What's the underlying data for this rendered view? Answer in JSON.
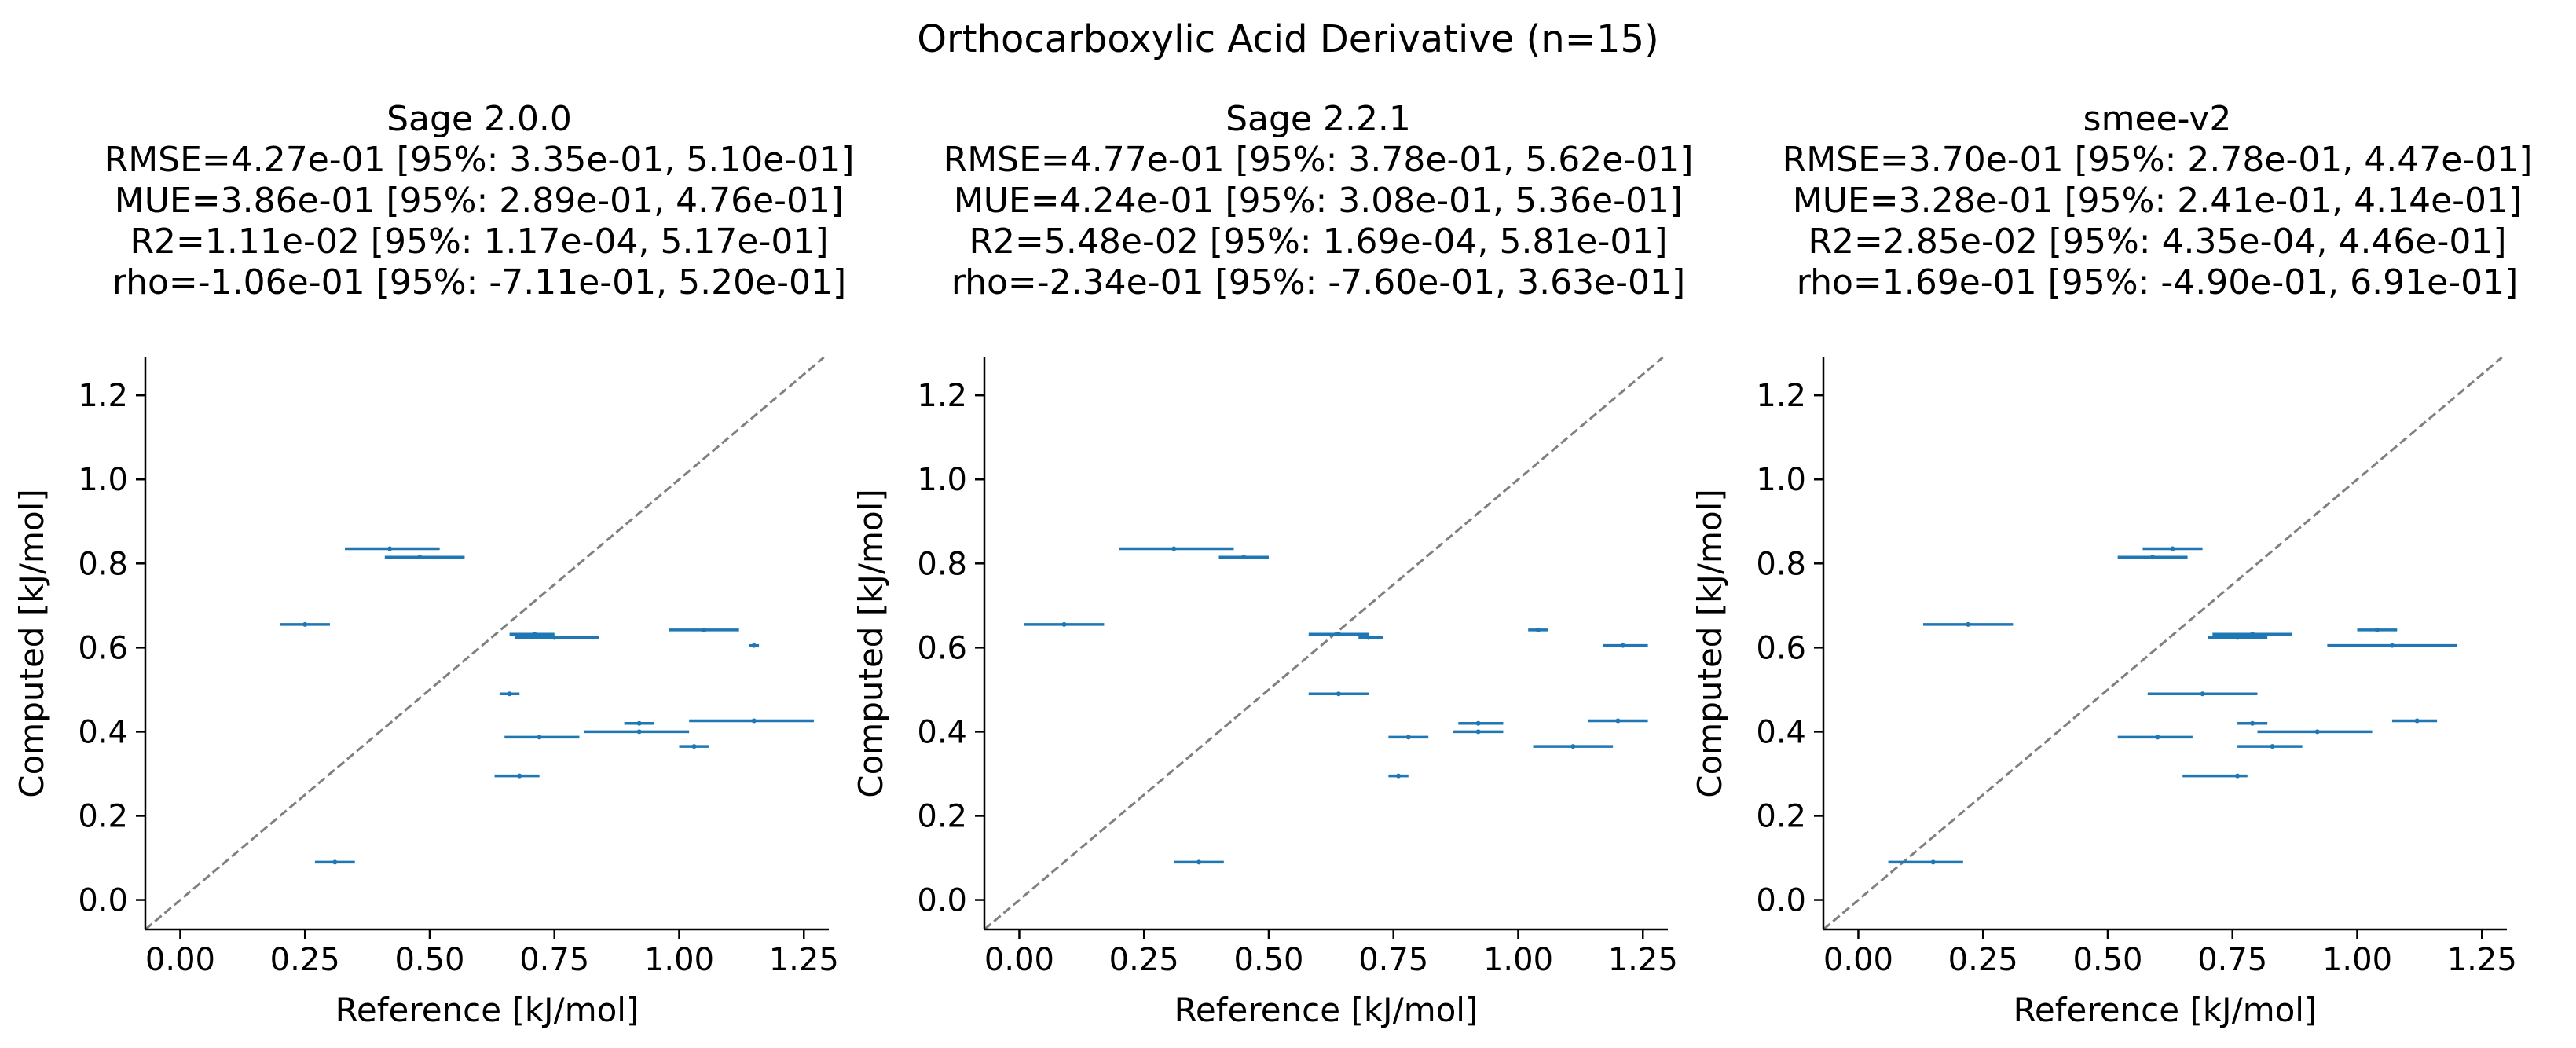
{
  "suptitle": "Orthocarboxylic Acid Derivative (n=15)",
  "colors": {
    "series": "#1f77b4",
    "identity_line": "#808080",
    "axis": "#000000"
  },
  "chart_data": [
    {
      "type": "scatter",
      "title_lines": [
        "Sage 2.0.0",
        "RMSE=4.27e-01 [95%: 3.35e-01, 5.10e-01]",
        "MUE=3.86e-01 [95%: 2.89e-01, 4.76e-01]",
        "R2=1.11e-02 [95%: 1.17e-04, 5.17e-01]",
        "rho=-1.06e-01 [95%: -7.11e-01, 5.20e-01]"
      ],
      "xlabel": "Reference [kJ/mol]",
      "ylabel": "Computed [kJ/mol]",
      "xlim": [
        -0.07,
        1.3
      ],
      "ylim": [
        -0.07,
        1.29
      ],
      "xticks": [
        "0.00",
        "0.25",
        "0.50",
        "0.75",
        "1.00",
        "1.25"
      ],
      "yticks": [
        "0.0",
        "0.2",
        "0.4",
        "0.6",
        "0.8",
        "1.0",
        "1.2"
      ],
      "identity_line": true,
      "points": [
        {
          "x": 0.42,
          "y": 0.835,
          "xerr_low": 0.33,
          "xerr_high": 0.52
        },
        {
          "x": 0.48,
          "y": 0.815,
          "xerr_low": 0.41,
          "xerr_high": 0.57
        },
        {
          "x": 0.25,
          "y": 0.655,
          "xerr_low": 0.2,
          "xerr_high": 0.3
        },
        {
          "x": 0.71,
          "y": 0.632,
          "xerr_low": 0.66,
          "xerr_high": 0.75
        },
        {
          "x": 0.75,
          "y": 0.624,
          "xerr_low": 0.67,
          "xerr_high": 0.84
        },
        {
          "x": 1.05,
          "y": 0.642,
          "xerr_low": 0.98,
          "xerr_high": 1.12
        },
        {
          "x": 1.15,
          "y": 0.605,
          "xerr_low": 1.14,
          "xerr_high": 1.16
        },
        {
          "x": 0.66,
          "y": 0.49,
          "xerr_low": 0.64,
          "xerr_high": 0.68
        },
        {
          "x": 0.92,
          "y": 0.42,
          "xerr_low": 0.89,
          "xerr_high": 0.95
        },
        {
          "x": 1.15,
          "y": 0.426,
          "xerr_low": 1.02,
          "xerr_high": 1.27
        },
        {
          "x": 0.72,
          "y": 0.387,
          "xerr_low": 0.65,
          "xerr_high": 0.8
        },
        {
          "x": 0.92,
          "y": 0.4,
          "xerr_low": 0.81,
          "xerr_high": 1.02
        },
        {
          "x": 1.03,
          "y": 0.365,
          "xerr_low": 1.0,
          "xerr_high": 1.06
        },
        {
          "x": 0.68,
          "y": 0.295,
          "xerr_low": 0.63,
          "xerr_high": 0.72
        },
        {
          "x": 0.31,
          "y": 0.09,
          "xerr_low": 0.27,
          "xerr_high": 0.35
        }
      ]
    },
    {
      "type": "scatter",
      "title_lines": [
        "Sage 2.2.1",
        "RMSE=4.77e-01 [95%: 3.78e-01, 5.62e-01]",
        "MUE=4.24e-01 [95%: 3.08e-01, 5.36e-01]",
        "R2=5.48e-02 [95%: 1.69e-04, 5.81e-01]",
        "rho=-2.34e-01 [95%: -7.60e-01, 3.63e-01]"
      ],
      "xlabel": "Reference [kJ/mol]",
      "ylabel": "Computed [kJ/mol]",
      "xlim": [
        -0.07,
        1.3
      ],
      "ylim": [
        -0.07,
        1.29
      ],
      "xticks": [
        "0.00",
        "0.25",
        "0.50",
        "0.75",
        "1.00",
        "1.25"
      ],
      "yticks": [
        "0.0",
        "0.2",
        "0.4",
        "0.6",
        "0.8",
        "1.0",
        "1.2"
      ],
      "identity_line": true,
      "points": [
        {
          "x": 0.31,
          "y": 0.835,
          "xerr_low": 0.2,
          "xerr_high": 0.43
        },
        {
          "x": 0.45,
          "y": 0.815,
          "xerr_low": 0.4,
          "xerr_high": 0.5
        },
        {
          "x": 0.09,
          "y": 0.655,
          "xerr_low": 0.01,
          "xerr_high": 0.17
        },
        {
          "x": 0.64,
          "y": 0.632,
          "xerr_low": 0.58,
          "xerr_high": 0.7
        },
        {
          "x": 0.7,
          "y": 0.624,
          "xerr_low": 0.68,
          "xerr_high": 0.73
        },
        {
          "x": 1.04,
          "y": 0.642,
          "xerr_low": 1.02,
          "xerr_high": 1.06
        },
        {
          "x": 1.21,
          "y": 0.605,
          "xerr_low": 1.17,
          "xerr_high": 1.26
        },
        {
          "x": 0.64,
          "y": 0.49,
          "xerr_low": 0.58,
          "xerr_high": 0.7
        },
        {
          "x": 0.92,
          "y": 0.42,
          "xerr_low": 0.88,
          "xerr_high": 0.97
        },
        {
          "x": 1.2,
          "y": 0.426,
          "xerr_low": 1.14,
          "xerr_high": 1.26
        },
        {
          "x": 0.78,
          "y": 0.387,
          "xerr_low": 0.74,
          "xerr_high": 0.82
        },
        {
          "x": 0.92,
          "y": 0.4,
          "xerr_low": 0.87,
          "xerr_high": 0.97
        },
        {
          "x": 1.11,
          "y": 0.365,
          "xerr_low": 1.03,
          "xerr_high": 1.19
        },
        {
          "x": 0.76,
          "y": 0.295,
          "xerr_low": 0.74,
          "xerr_high": 0.78
        },
        {
          "x": 0.36,
          "y": 0.09,
          "xerr_low": 0.31,
          "xerr_high": 0.41
        }
      ]
    },
    {
      "type": "scatter",
      "title_lines": [
        "smee-v2",
        "RMSE=3.70e-01 [95%: 2.78e-01, 4.47e-01]",
        "MUE=3.28e-01 [95%: 2.41e-01, 4.14e-01]",
        "R2=2.85e-02 [95%: 4.35e-04, 4.46e-01]",
        "rho=1.69e-01 [95%: -4.90e-01, 6.91e-01]"
      ],
      "xlabel": "Reference [kJ/mol]",
      "ylabel": "Computed [kJ/mol]",
      "xlim": [
        -0.07,
        1.3
      ],
      "ylim": [
        -0.07,
        1.29
      ],
      "xticks": [
        "0.00",
        "0.25",
        "0.50",
        "0.75",
        "1.00",
        "1.25"
      ],
      "yticks": [
        "0.0",
        "0.2",
        "0.4",
        "0.6",
        "0.8",
        "1.0",
        "1.2"
      ],
      "identity_line": true,
      "points": [
        {
          "x": 0.63,
          "y": 0.835,
          "xerr_low": 0.57,
          "xerr_high": 0.69
        },
        {
          "x": 0.59,
          "y": 0.815,
          "xerr_low": 0.52,
          "xerr_high": 0.66
        },
        {
          "x": 0.22,
          "y": 0.655,
          "xerr_low": 0.13,
          "xerr_high": 0.31
        },
        {
          "x": 0.79,
          "y": 0.632,
          "xerr_low": 0.71,
          "xerr_high": 0.87
        },
        {
          "x": 0.76,
          "y": 0.624,
          "xerr_low": 0.7,
          "xerr_high": 0.82
        },
        {
          "x": 1.04,
          "y": 0.642,
          "xerr_low": 1.0,
          "xerr_high": 1.08
        },
        {
          "x": 1.07,
          "y": 0.605,
          "xerr_low": 0.94,
          "xerr_high": 1.2
        },
        {
          "x": 0.69,
          "y": 0.49,
          "xerr_low": 0.58,
          "xerr_high": 0.8
        },
        {
          "x": 0.79,
          "y": 0.42,
          "xerr_low": 0.76,
          "xerr_high": 0.82
        },
        {
          "x": 1.12,
          "y": 0.426,
          "xerr_low": 1.07,
          "xerr_high": 1.16
        },
        {
          "x": 0.6,
          "y": 0.387,
          "xerr_low": 0.52,
          "xerr_high": 0.67
        },
        {
          "x": 0.92,
          "y": 0.4,
          "xerr_low": 0.8,
          "xerr_high": 1.03
        },
        {
          "x": 0.83,
          "y": 0.365,
          "xerr_low": 0.76,
          "xerr_high": 0.89
        },
        {
          "x": 0.76,
          "y": 0.295,
          "xerr_low": 0.65,
          "xerr_high": 0.78
        },
        {
          "x": 0.15,
          "y": 0.09,
          "xerr_low": 0.06,
          "xerr_high": 0.21
        }
      ]
    }
  ]
}
